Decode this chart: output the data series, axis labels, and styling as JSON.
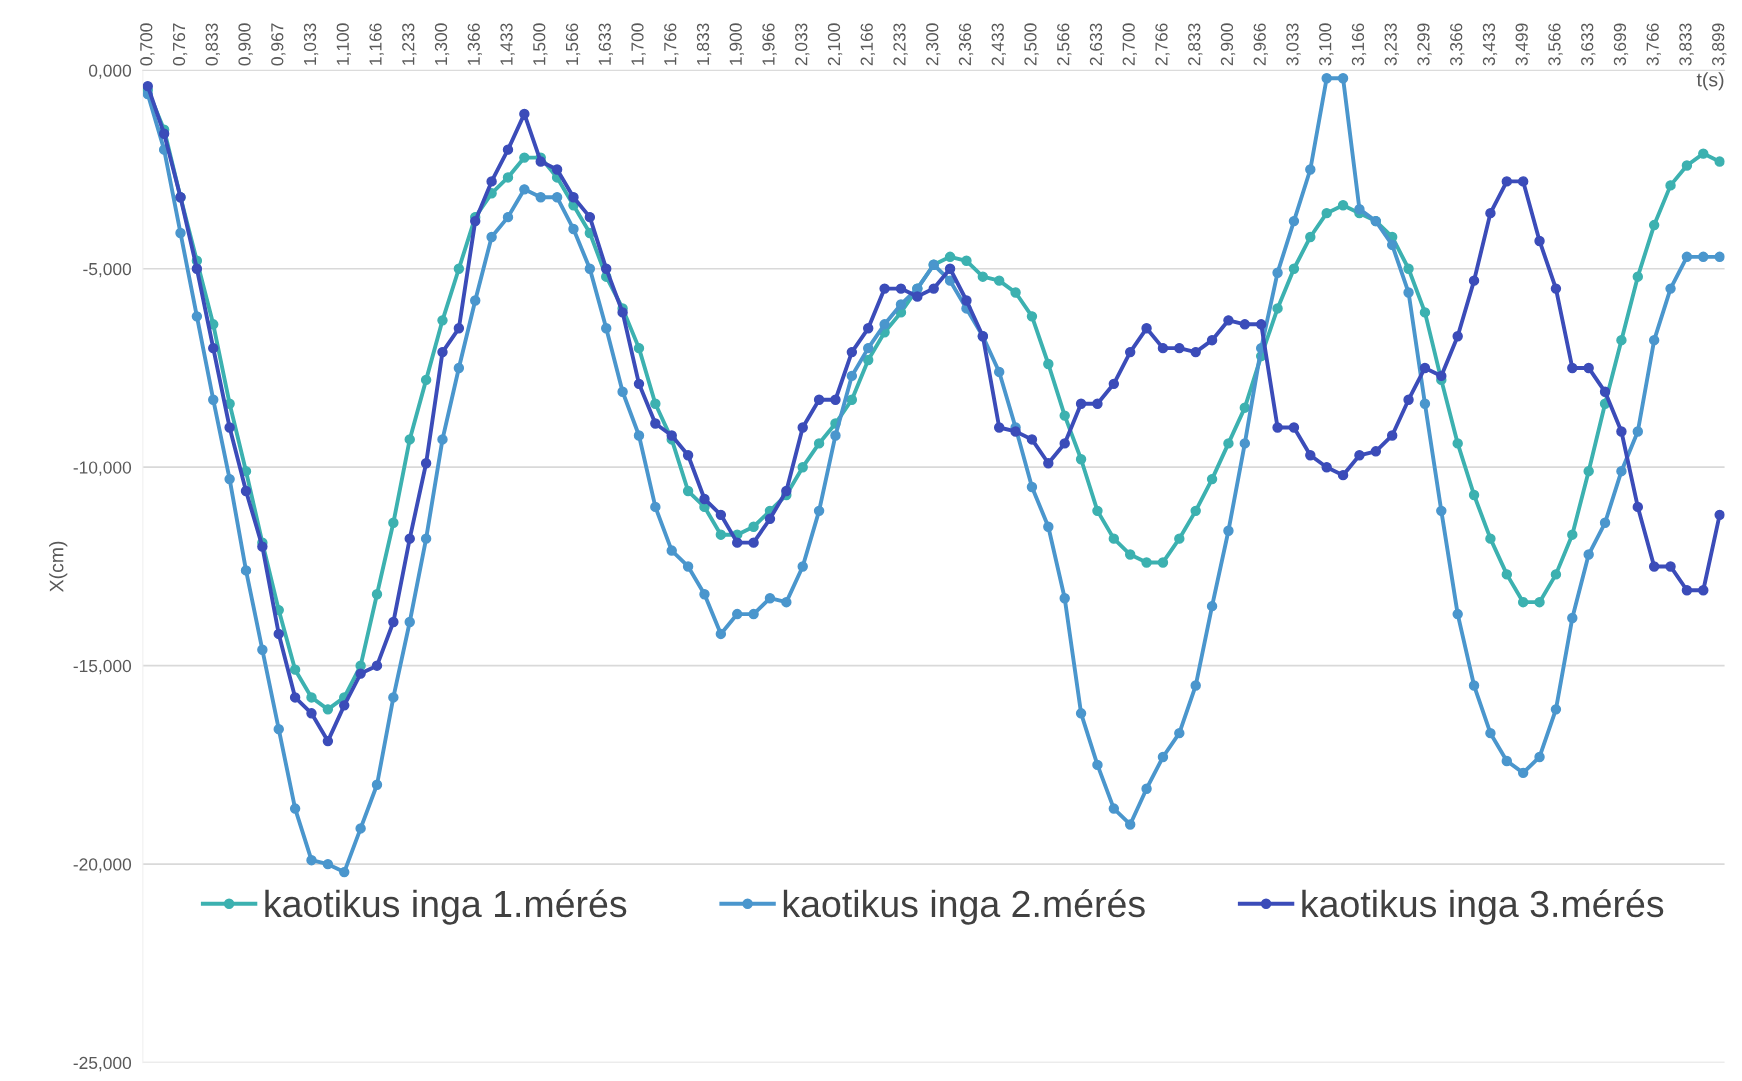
{
  "chart_data": {
    "type": "line",
    "xlabel": "t(s)",
    "ylabel": "X(cm)",
    "categories": [
      "0,700",
      null,
      "0,767",
      null,
      "0,833",
      null,
      "0,900",
      null,
      "0,967",
      null,
      "1,033",
      null,
      "1,100",
      null,
      "1,166",
      null,
      "1,233",
      null,
      "1,300",
      null,
      "1,366",
      null,
      "1,433",
      null,
      "1,500",
      null,
      "1,566",
      null,
      "1,633",
      null,
      "1,700",
      null,
      "1,766",
      null,
      "1,833",
      null,
      "1,900",
      null,
      "1,966",
      null,
      "2,033",
      null,
      "2,100",
      null,
      "2,166",
      null,
      "2,233",
      null,
      "2,300",
      null,
      "2,366",
      null,
      "2,433",
      null,
      "2,500",
      null,
      "2,566",
      null,
      "2,633",
      null,
      "2,700",
      null,
      "2,766",
      null,
      "2,833",
      null,
      "2,900",
      null,
      "2,966",
      null,
      "3,033",
      null,
      "3,100",
      null,
      "3,166",
      null,
      "3,233",
      null,
      "3,299",
      null,
      "3,366",
      null,
      "3,433",
      null,
      "3,499",
      null,
      "3,566",
      null,
      "3,633",
      null,
      "3,699",
      null,
      "3,766",
      null,
      "3,833",
      null,
      "3,899"
    ],
    "series": [
      {
        "name": "kaotikus inga 1.mérés",
        "color": "#3cb1b0",
        "values": [
          -0.5,
          -1.5,
          -3.2,
          -4.8,
          -6.4,
          -8.4,
          -10.1,
          -11.9,
          -13.6,
          -15.1,
          -15.8,
          -16.1,
          -15.8,
          -15.0,
          -13.2,
          -11.4,
          -9.3,
          -7.8,
          -6.3,
          -5.0,
          -3.7,
          -3.1,
          -2.7,
          -2.2,
          -2.2,
          -2.7,
          -3.4,
          -4.1,
          -5.2,
          -6.0,
          -7.0,
          -8.4,
          -9.3,
          -10.6,
          -11.0,
          -11.7,
          -11.7,
          -11.5,
          -11.1,
          -10.7,
          -10.0,
          -9.4,
          -8.9,
          -8.3,
          -7.3,
          -6.6,
          -6.1,
          -5.5,
          -4.9,
          -4.7,
          -4.8,
          -5.2,
          -5.3,
          -5.6,
          -6.2,
          -7.4,
          -8.7,
          -9.8,
          -11.1,
          -11.8,
          -12.2,
          -12.4,
          -12.4,
          -11.8,
          -11.1,
          -10.3,
          -9.4,
          -8.5,
          -7.2,
          -6.0,
          -5.0,
          -4.2,
          -3.6,
          -3.4,
          -3.6,
          -3.8,
          -4.2,
          -5.0,
          -6.1,
          -7.8,
          -9.4,
          -10.7,
          -11.8,
          -12.7,
          -13.4,
          -13.4,
          -12.7,
          -11.7,
          -10.1,
          -8.4,
          -6.8,
          -5.2,
          -3.9,
          -2.9,
          -2.4,
          -2.1,
          -2.3
        ]
      },
      {
        "name": "kaotikus inga 2.mérés",
        "color": "#4a96cd",
        "values": [
          -0.6,
          -2.0,
          -4.1,
          -6.2,
          -8.3,
          -10.3,
          -12.6,
          -14.6,
          -16.6,
          -18.6,
          -19.9,
          -20.0,
          -20.2,
          -19.1,
          -18.0,
          -15.8,
          -13.9,
          -11.8,
          -9.3,
          -7.5,
          -5.8,
          -4.2,
          -3.7,
          -3.0,
          -3.2,
          -3.2,
          -4.0,
          -5.0,
          -6.5,
          -8.1,
          -9.2,
          -11.0,
          -12.1,
          -12.5,
          -13.2,
          -14.2,
          -13.7,
          -13.7,
          -13.3,
          -13.4,
          -12.5,
          -11.1,
          -9.2,
          -7.7,
          -7.0,
          -6.4,
          -5.9,
          -5.5,
          -4.9,
          -5.3,
          -6.0,
          -6.7,
          -7.6,
          -9.0,
          -10.5,
          -11.5,
          -13.3,
          -16.2,
          -17.5,
          -18.6,
          -19.0,
          -18.1,
          -17.3,
          -16.7,
          -15.5,
          -13.5,
          -11.6,
          -9.4,
          -7.0,
          -5.1,
          -3.8,
          -2.5,
          -0.2,
          -0.2,
          -3.5,
          -3.8,
          -4.4,
          -5.6,
          -8.4,
          -11.1,
          -13.7,
          -15.5,
          -16.7,
          -17.4,
          -17.7,
          -17.3,
          -16.1,
          -13.8,
          -12.2,
          -11.4,
          -10.1,
          -9.1,
          -6.8,
          -5.5,
          -4.7,
          -4.7,
          -4.7
        ]
      },
      {
        "name": "kaotikus inga 3.mérés",
        "color": "#3b4cb9",
        "values": [
          -0.4,
          -1.6,
          -3.2,
          -5.0,
          -7.0,
          -9.0,
          -10.6,
          -12.0,
          -14.2,
          -15.8,
          -16.2,
          -16.9,
          -16.0,
          -15.2,
          -15.0,
          -13.9,
          -11.8,
          -9.9,
          -7.1,
          -6.5,
          -3.8,
          -2.8,
          -2.0,
          -1.1,
          -2.3,
          -2.5,
          -3.2,
          -3.7,
          -5.0,
          -6.1,
          -7.9,
          -8.9,
          -9.2,
          -9.7,
          -10.8,
          -11.2,
          -11.9,
          -11.9,
          -11.3,
          -10.6,
          -9.0,
          -8.3,
          -8.3,
          -7.1,
          -6.5,
          -5.5,
          -5.5,
          -5.7,
          -5.5,
          -5.0,
          -5.8,
          -6.7,
          -9.0,
          -9.1,
          -9.3,
          -9.9,
          -9.4,
          -8.4,
          -8.4,
          -7.9,
          -7.1,
          -6.5,
          -7.0,
          -7.0,
          -7.1,
          -6.8,
          -6.3,
          -6.4,
          -6.4,
          -9.0,
          -9.0,
          -9.7,
          -10.0,
          -10.2,
          -9.7,
          -9.6,
          -9.2,
          -8.3,
          -7.5,
          -7.7,
          -6.7,
          -5.3,
          -3.6,
          -2.8,
          -2.8,
          -4.3,
          -5.5,
          -7.5,
          -7.5,
          -8.1,
          -9.1,
          -11.0,
          -12.5,
          -12.5,
          -13.1,
          -13.1,
          -11.2
        ]
      }
    ],
    "ylim": [
      -25,
      0
    ],
    "yticks": [
      {
        "value": -25,
        "label": "-25,000"
      },
      {
        "value": -20,
        "label": "-20,000"
      },
      {
        "value": -15,
        "label": "-15,000"
      },
      {
        "value": -10,
        "label": "-10,000"
      },
      {
        "value": -5,
        "label": "-5,000"
      },
      {
        "value": 0,
        "label": "0,000"
      }
    ],
    "grid": "y",
    "legend": "bottom",
    "marker": "circle",
    "line_style": "solid"
  }
}
